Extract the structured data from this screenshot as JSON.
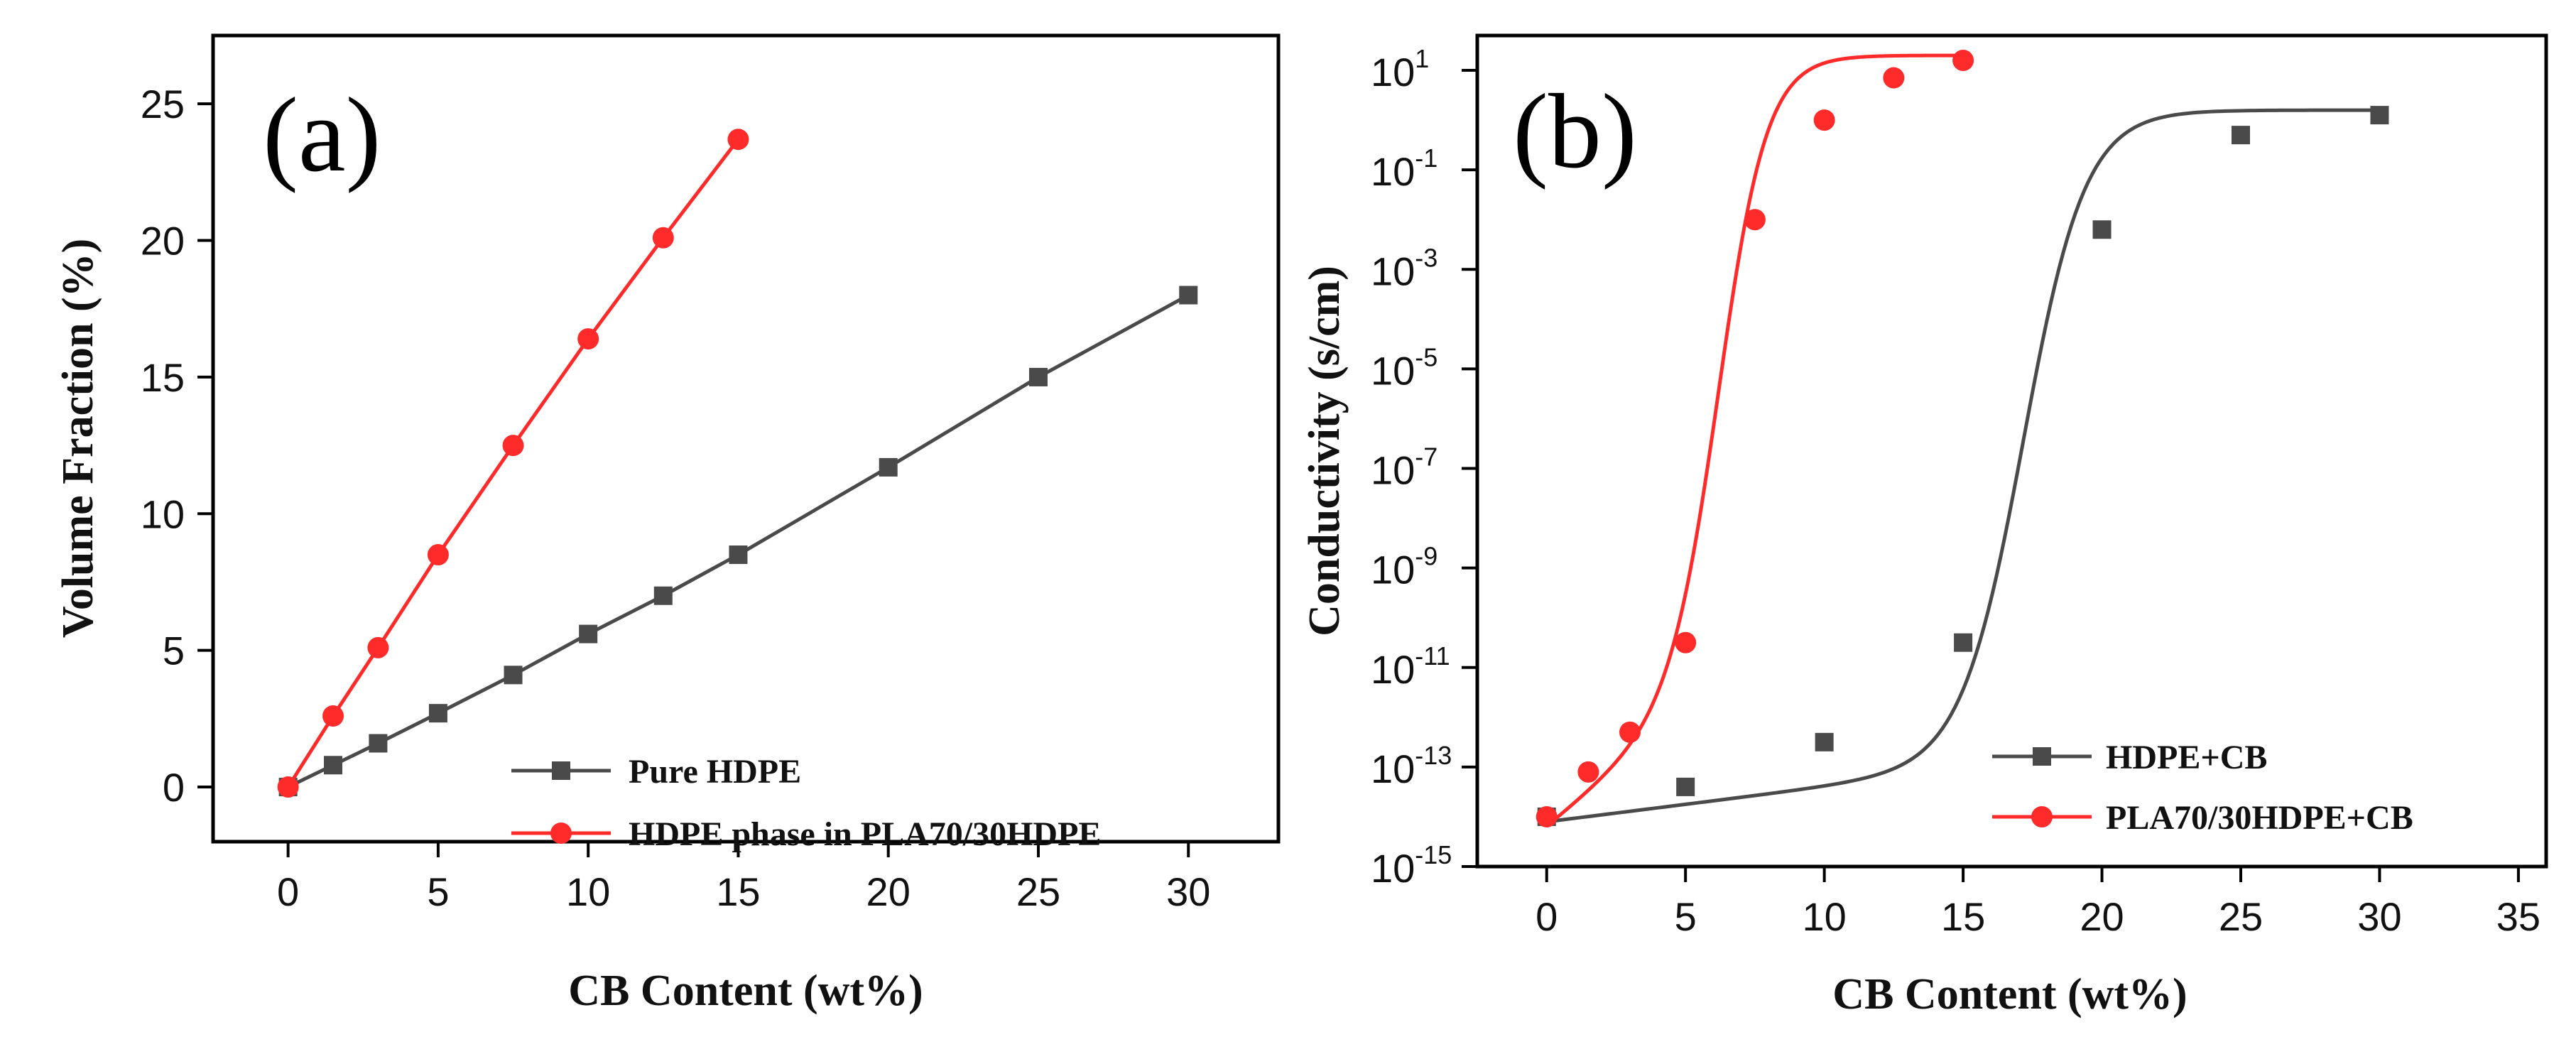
{
  "chart_data": [
    {
      "type": "line",
      "panel_label": "(a)",
      "xlabel": "CB Content (wt%)",
      "ylabel": "Volume Fraction (%)",
      "xlim": [
        -2.5,
        33
      ],
      "ylim": [
        -2,
        27.5
      ],
      "xticks": [
        0,
        5,
        10,
        15,
        20,
        25,
        30
      ],
      "yticks": [
        0,
        5,
        10,
        15,
        20,
        25
      ],
      "legend_position": "bottom-right",
      "series": [
        {
          "name": "Pure HDPE",
          "color": "#4a4a4a",
          "marker": "square",
          "x": [
            0,
            1.5,
            3,
            5,
            7.5,
            10,
            12.5,
            15,
            20,
            25,
            30
          ],
          "y": [
            0,
            0.8,
            1.6,
            2.7,
            4.1,
            5.6,
            7.0,
            8.5,
            11.7,
            15.0,
            18.0
          ]
        },
        {
          "name": "HDPE phase in PLA70/30HDPE",
          "color": "#ff2a2a",
          "marker": "circle",
          "x": [
            0,
            1.5,
            3,
            5,
            7.5,
            10,
            12.5,
            15
          ],
          "y": [
            0,
            2.6,
            5.1,
            8.5,
            12.5,
            16.4,
            20.1,
            23.7
          ]
        }
      ]
    },
    {
      "type": "scatter",
      "panel_label": "(b)",
      "xlabel": "CB Content (wt%)",
      "ylabel": "Conductivity (s/cm)",
      "yscale": "log",
      "xlim": [
        -2.5,
        36
      ],
      "ylim_log10": [
        -15,
        1.7
      ],
      "xticks": [
        0,
        5,
        10,
        15,
        20,
        25,
        30,
        35
      ],
      "yticks": [
        {
          "base": "10",
          "exp": "1",
          "value": 1
        },
        {
          "base": "10",
          "exp": "-1",
          "value": -1
        },
        {
          "base": "10",
          "exp": "-3",
          "value": -3
        },
        {
          "base": "10",
          "exp": "-5",
          "value": -5
        },
        {
          "base": "10",
          "exp": "-7",
          "value": -7
        },
        {
          "base": "10",
          "exp": "-9",
          "value": -9
        },
        {
          "base": "10",
          "exp": "-11",
          "value": -11
        },
        {
          "base": "10",
          "exp": "-13",
          "value": -13
        },
        {
          "base": "10",
          "exp": "-15",
          "value": -15
        }
      ],
      "legend_position": "bottom-right",
      "series": [
        {
          "name": "HDPE+CB",
          "color": "#4a4a4a",
          "marker": "square",
          "x": [
            0,
            5,
            10,
            15,
            20,
            25,
            30
          ],
          "log10_y": [
            -14.0,
            -13.4,
            -12.5,
            -10.5,
            -2.2,
            -0.3,
            0.1
          ],
          "fit": {
            "kind": "sigmoid",
            "low": -14.1,
            "high": 0.2,
            "x0": 17.2,
            "k": 0.9,
            "tail_slope": 0.07
          }
        },
        {
          "name": "PLA70/30HDPE+CB",
          "color": "#ff2a2a",
          "marker": "circle",
          "x": [
            0,
            1.5,
            3,
            5,
            7.5,
            10,
            12.5,
            15
          ],
          "log10_y": [
            -14.0,
            -13.1,
            -12.3,
            -10.5,
            -2.0,
            0.0,
            0.85,
            1.2
          ],
          "fit": {
            "kind": "sigmoid",
            "low": -14.2,
            "high": 1.3,
            "x0": 6.3,
            "k": 1.15,
            "tail_slope": 0.45
          }
        }
      ]
    }
  ]
}
